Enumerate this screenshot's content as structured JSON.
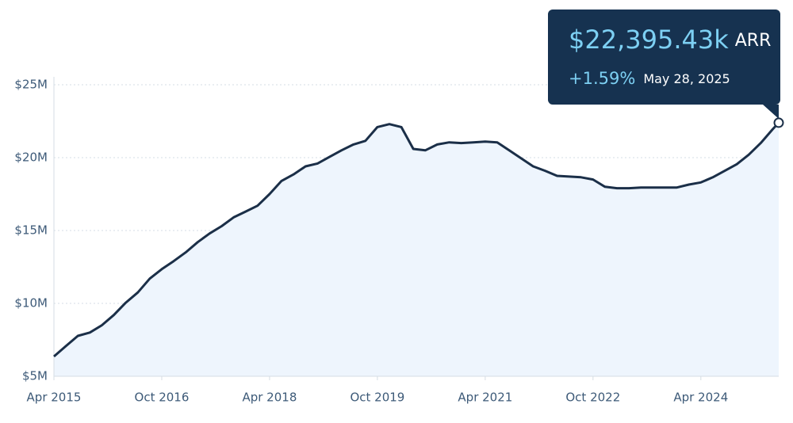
{
  "chart_data": {
    "type": "area",
    "x": [
      "2015-04",
      "2015-06",
      "2015-08",
      "2015-10",
      "2015-12",
      "2016-02",
      "2016-04",
      "2016-06",
      "2016-08",
      "2016-10",
      "2016-12",
      "2017-02",
      "2017-04",
      "2017-06",
      "2017-08",
      "2017-10",
      "2017-12",
      "2018-02",
      "2018-04",
      "2018-06",
      "2018-08",
      "2018-10",
      "2018-12",
      "2019-02",
      "2019-04",
      "2019-06",
      "2019-08",
      "2019-10",
      "2019-12",
      "2020-02",
      "2020-04",
      "2020-06",
      "2020-08",
      "2020-10",
      "2020-12",
      "2021-02",
      "2021-04",
      "2021-06",
      "2021-08",
      "2021-10",
      "2021-12",
      "2022-02",
      "2022-04",
      "2022-06",
      "2022-08",
      "2022-10",
      "2022-12",
      "2023-02",
      "2023-04",
      "2023-06",
      "2023-08",
      "2023-10",
      "2023-12",
      "2024-02",
      "2024-04",
      "2024-06",
      "2024-08",
      "2024-10",
      "2024-12",
      "2025-02",
      "2025-04",
      "2025-05"
    ],
    "series": [
      {
        "name": "ARR",
        "color": "#1b2f48",
        "fill": "#eef5fd",
        "values": [
          6.36,
          7.07,
          7.77,
          8.0,
          8.5,
          9.2,
          10.05,
          10.75,
          11.7,
          12.35,
          12.9,
          13.5,
          14.2,
          14.8,
          15.3,
          15.9,
          16.3,
          16.7,
          17.5,
          18.4,
          18.85,
          19.4,
          19.6,
          20.05,
          20.5,
          20.9,
          21.15,
          22.1,
          22.3,
          22.1,
          20.6,
          20.5,
          20.9,
          21.05,
          21.0,
          21.05,
          21.1,
          21.05,
          20.5,
          19.95,
          19.4,
          19.1,
          18.75,
          18.7,
          18.65,
          18.5,
          18.0,
          17.9,
          17.9,
          17.95,
          17.95,
          17.95,
          17.95,
          18.15,
          18.3,
          18.65,
          19.1,
          19.55,
          20.2,
          21.0,
          21.95,
          22.39543
        ]
      }
    ],
    "xlim": [
      "2015-04",
      "2025-05"
    ],
    "xticks": [
      {
        "value": "2015-04",
        "label": "Apr 2015"
      },
      {
        "value": "2016-10",
        "label": "Oct 2016"
      },
      {
        "value": "2018-04",
        "label": "Apr 2018"
      },
      {
        "value": "2019-10",
        "label": "Oct 2019"
      },
      {
        "value": "2021-04",
        "label": "Apr 2021"
      },
      {
        "value": "2022-10",
        "label": "Oct 2022"
      },
      {
        "value": "2024-04",
        "label": "Apr 2024"
      }
    ],
    "ylim": [
      5,
      25
    ],
    "yticks": [
      {
        "value": 5,
        "label": "$5M"
      },
      {
        "value": 10,
        "label": "$10M"
      },
      {
        "value": 15,
        "label": "$15M"
      },
      {
        "value": 20,
        "label": "$20M"
      },
      {
        "value": 25,
        "label": "$25M"
      }
    ],
    "grid": true,
    "tooltip": {
      "value_label": "$22,395.43k",
      "unit": "ARR",
      "change": "+1.59%",
      "date": "May 28, 2025"
    }
  }
}
